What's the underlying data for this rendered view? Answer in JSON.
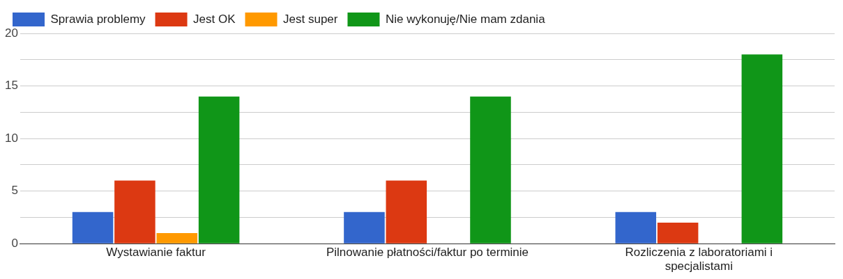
{
  "chart_data": {
    "type": "bar",
    "categories": [
      "Wystawianie faktur",
      "Pilnowanie płatności/faktur po terminie",
      "Rozliczenia z laboratoriami i specjalistami"
    ],
    "series": [
      {
        "name": "Sprawia problemy",
        "color": "#3366cc",
        "values": [
          3,
          3,
          3
        ]
      },
      {
        "name": "Jest OK",
        "color": "#dc3912",
        "values": [
          6,
          6,
          2
        ]
      },
      {
        "name": "Jest super",
        "color": "#ff9900",
        "values": [
          1,
          0,
          0
        ]
      },
      {
        "name": "Nie wykonuję/Nie mam zdania",
        "color": "#109618",
        "values": [
          14,
          14,
          18
        ]
      }
    ],
    "ylim": [
      0,
      20
    ],
    "yticks": [
      0,
      {
        "value": 2.5,
        "label": null
      },
      5,
      {
        "value": 7.5,
        "label": null
      },
      10,
      {
        "value": 12.5,
        "label": null
      },
      15,
      {
        "value": 17.5,
        "label": null
      },
      20
    ],
    "grid": "y",
    "legend": "top left"
  }
}
